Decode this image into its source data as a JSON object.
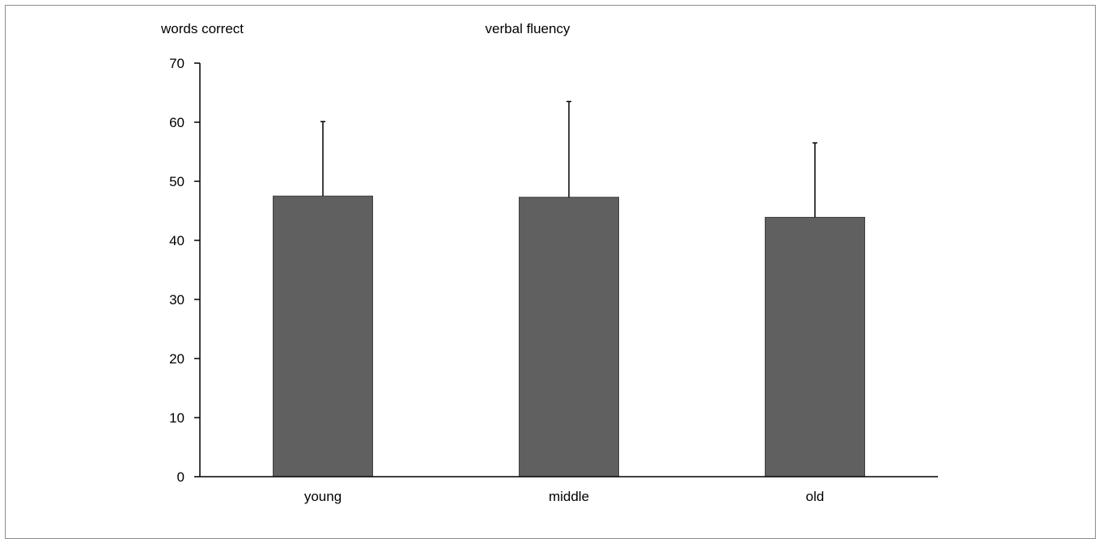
{
  "colors": {
    "bar": "#606060",
    "bar_border": "#404040",
    "axis": "#000000",
    "frame": "#8c8c8c"
  },
  "chart_data": {
    "type": "bar",
    "title": "verbal fluency",
    "ylabel": "words correct",
    "xlabel": "",
    "categories": [
      "young",
      "middle",
      "old"
    ],
    "values": [
      47.5,
      47.3,
      43.9
    ],
    "error_plus": [
      12.6,
      16.2,
      12.6
    ],
    "ylim": [
      0,
      70
    ],
    "yticks": [
      0,
      10,
      20,
      30,
      40,
      50,
      60,
      70
    ],
    "grid": false,
    "legend": "none"
  }
}
